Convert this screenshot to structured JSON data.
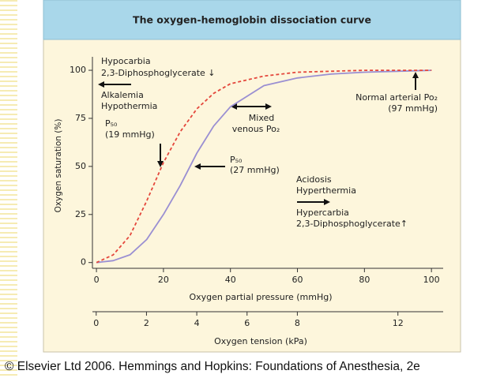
{
  "chart_data": {
    "type": "line",
    "title": "The oxygen-hemoglobin dissociation curve",
    "x": [
      0,
      5,
      10,
      15,
      20,
      25,
      30,
      35,
      40,
      50,
      60,
      70,
      80,
      90,
      100
    ],
    "series": [
      {
        "color": "#9a8fd2",
        "style": "solid",
        "values": [
          0,
          1,
          4,
          12,
          25,
          40,
          57,
          71,
          81,
          92,
          96,
          98,
          99,
          99.5,
          100
        ]
      },
      {
        "color": "#e4473c",
        "style": "dashed",
        "values": [
          0,
          4,
          14,
          32,
          52,
          68,
          80,
          88,
          93,
          97,
          99,
          99.5,
          100,
          100,
          100
        ]
      }
    ],
    "xlim": [
      -1.2,
      103.5
    ],
    "xticks": [
      0,
      20,
      40,
      60,
      80,
      100
    ],
    "ylim": [
      -3,
      107
    ],
    "yticks": [
      0,
      25,
      50,
      75,
      100
    ],
    "x_label": "Oxygen partial pressure (mmHg)",
    "y_label": "Oxygen saturation (%)",
    "x2lim": [
      -0.15,
      13.8
    ],
    "x2ticks": [
      0,
      2,
      4,
      6,
      8,
      12
    ],
    "x2_label": "Oxygen tension (kPa)",
    "annotations": [
      "Hypocarbia",
      "2,3-Diphosphoglycerate ↓",
      "Alkalemia",
      "Hypothermia",
      "P₅₀",
      "(19 mmHg)",
      "P₅₀",
      "(27 mmHg)",
      "Mixed",
      "venous Po₂",
      "Normal arterial Po₂",
      "(97 mmHg)",
      "Acidosis",
      "Hyperthermia",
      "Hypercarbia",
      "2,3-Diphosphoglycerate↑"
    ]
  },
  "footer": "© Elsevier Ltd 2006. Hemmings and Hopkins: Foundations of Anesthesia, 2e"
}
